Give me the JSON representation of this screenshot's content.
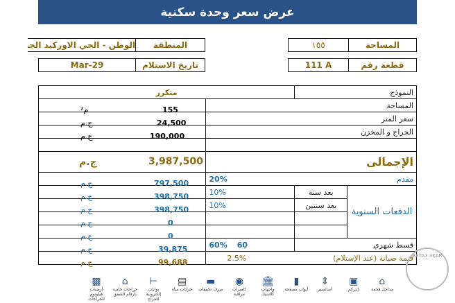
{
  "title": "عرض سعر وحدة سكنية",
  "info": {
    "region_label": "المنطقة",
    "region_value": "الوطن - الحي الاوركيد الجنوبي",
    "delivery_label": "تاريخ الاستلام",
    "delivery_value": "Mar-29",
    "area_label": "المساحة",
    "area_value": "١٥٥",
    "plot_label": "قطعة رقم",
    "plot_value": "111 A"
  },
  "table": {
    "model_label": "النموذج",
    "model_value": "متكرر",
    "area_label": "المساحة",
    "area_value": "155",
    "area_unit": "م²",
    "price_label": "سعر المتر",
    "price_value": "24,500",
    "currency": "ج.م",
    "garage_label": "الجراج و المخزن",
    "garage_value": "190,000",
    "total_label": "الإجمالى",
    "total_value": "3,987,500",
    "down_label": "مقدم",
    "down_value": "797,500",
    "down_pct": "20%",
    "annual_label": "الدفعات السنوية",
    "annual": [
      {
        "label": "بعد سنة",
        "pct": "10%",
        "value": "398,750"
      },
      {
        "label": "بعد سنتين",
        "pct": "10%",
        "value": "398,750"
      },
      {
        "label": "",
        "pct": "",
        "value": "0"
      },
      {
        "label": "",
        "pct": "",
        "value": "0"
      }
    ],
    "monthly_label": "قسط شهري",
    "monthly_pct": "60%",
    "monthly_count": "60",
    "monthly_value": "39,875",
    "maint_label": "قيمة صيانة (عند الإستلام)",
    "maint_pct": "2.5%",
    "maint_value": "99,688"
  },
  "amenities": [
    "مداخل فخمة",
    "إنتركم",
    "أسانسير",
    "أبواب مصفحة",
    "واجهات كلاسيك",
    "كاميرات مراقبة",
    "صرف تكييفات",
    "خزانات مياه",
    "بوابات إلكترونية للجراج",
    "جراجات خاصة بأرقام الشقق",
    "أرضيات هيلوتوم للجراجات"
  ],
  "stamp": "BETA3 3KAR",
  "colors": {
    "header": "#2b5189",
    "gold": "#8a6a12",
    "blue": "#1f6ea8"
  }
}
